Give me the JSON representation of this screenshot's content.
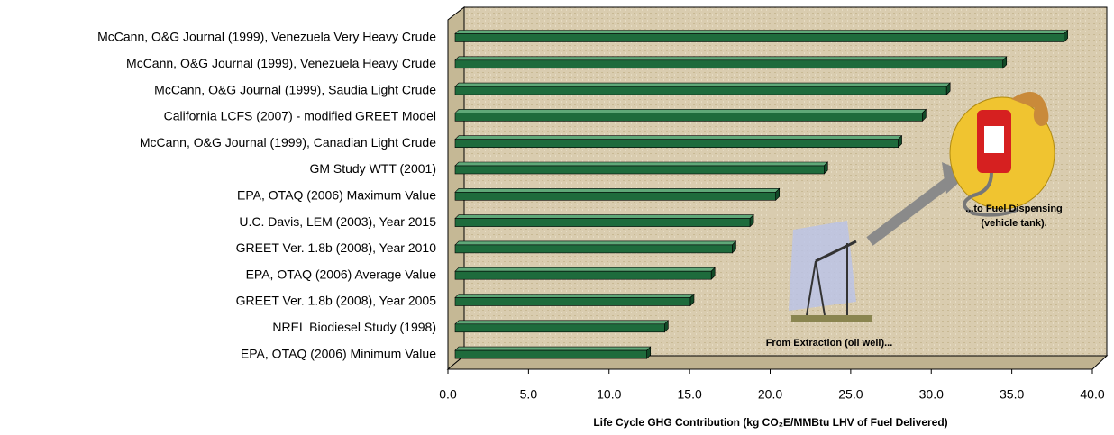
{
  "chart_data": {
    "type": "bar",
    "orientation": "horizontal",
    "xlabel": "Life Cycle GHG Contribution (kg CO₂E/MMBtu LHV of Fuel Delivered)",
    "categories": [
      "McCann, O&G Journal (1999), Venezuela Very Heavy Crude",
      "McCann, O&G Journal (1999), Venezuela Heavy Crude",
      "McCann, O&G Journal (1999), Saudia Light Crude",
      "California LCFS (2007) - modified GREET Model",
      "McCann, O&G Journal (1999), Canadian Light Crude",
      "GM Study WTT (2001)",
      "EPA, OTAQ (2006) Maximum Value",
      "U.C. Davis, LEM (2003), Year 2015",
      "GREET Ver. 1.8b (2008), Year 2010",
      "EPA, OTAQ (2006) Average Value",
      "GREET Ver. 1.8b (2008), Year 2005",
      "NREL Biodiesel Study (1998)",
      "EPA, OTAQ (2006) Minimum Value"
    ],
    "values": [
      37.8,
      34.0,
      30.5,
      29.0,
      27.5,
      22.9,
      19.9,
      18.3,
      17.2,
      15.9,
      14.6,
      13.0,
      11.9
    ],
    "color": "#1e6b3c",
    "xlim": [
      0,
      40
    ],
    "xticks": [
      {
        "value": 0,
        "label": "0.0"
      },
      {
        "value": 5,
        "label": "5.0"
      },
      {
        "value": 10,
        "label": "10.0"
      },
      {
        "value": 15,
        "label": "15.0"
      },
      {
        "value": 20,
        "label": "20.0"
      },
      {
        "value": 25,
        "label": "25.0"
      },
      {
        "value": 30,
        "label": "30.0"
      },
      {
        "value": 35,
        "label": "35.0"
      },
      {
        "value": 40,
        "label": "40.0"
      }
    ],
    "annotations": [
      "From Extraction (oil well)...",
      "...to Fuel Dispensing",
      "(vehicle tank)."
    ]
  }
}
